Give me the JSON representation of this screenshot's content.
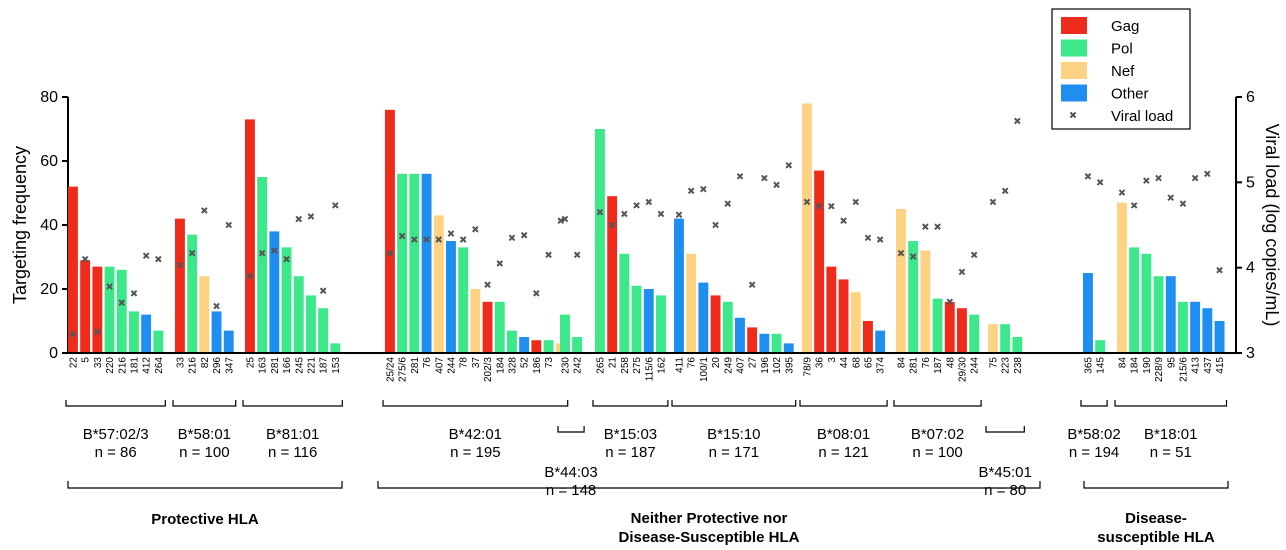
{
  "chart_data": {
    "type": "bar",
    "ylabel_left": "Targeting frequency",
    "ylabel_right": "Viral load (log copies/mL)",
    "ylim_left": [
      0,
      80
    ],
    "ylim_right": [
      3,
      6
    ],
    "yticks_left": [
      "0",
      "20",
      "40",
      "60",
      "80"
    ],
    "yticks_right": [
      "3",
      "4",
      "5",
      "6"
    ],
    "colors": {
      "Gag": "#ef2b1c",
      "Pol": "#3de88a",
      "Nef": "#fdd383",
      "Other": "#1e8ef0",
      "Viral load": "#555555"
    },
    "legend": {
      "position": "top-right",
      "entries": [
        "Gag",
        "Pol",
        "Nef",
        "Other",
        "Viral load"
      ]
    },
    "hla_alleles": [
      {
        "name": "B*57:02/3",
        "n": "n = 86",
        "bars": [
          {
            "label": "22",
            "protein": "Gag",
            "freq": 52,
            "vl": 3.22
          },
          {
            "label": "5",
            "protein": "Gag",
            "freq": 29,
            "vl": 4.1
          },
          {
            "label": "33",
            "protein": "Gag",
            "freq": 27,
            "vl": 3.25
          },
          {
            "label": "220",
            "protein": "Pol",
            "freq": 27,
            "vl": 3.78
          },
          {
            "label": "216",
            "protein": "Pol",
            "freq": 26,
            "vl": 3.59
          },
          {
            "label": "181",
            "protein": "Pol",
            "freq": 13,
            "vl": 3.7
          },
          {
            "label": "412",
            "protein": "Other",
            "freq": 12,
            "vl": 4.14
          },
          {
            "label": "264",
            "protein": "Pol",
            "freq": 7,
            "vl": 4.1
          }
        ]
      },
      {
        "name": "B*58:01",
        "n": "n = 100",
        "bars": [
          {
            "label": "33",
            "protein": "Gag",
            "freq": 42,
            "vl": 4.03
          },
          {
            "label": "216",
            "protein": "Pol",
            "freq": 37,
            "vl": 4.17
          },
          {
            "label": "82",
            "protein": "Nef",
            "freq": 24,
            "vl": 4.67
          },
          {
            "label": "296",
            "protein": "Other",
            "freq": 13,
            "vl": 3.55
          },
          {
            "label": "347",
            "protein": "Other",
            "freq": 7,
            "vl": 4.5
          }
        ]
      },
      {
        "name": "B*81:01",
        "n": "n = 116",
        "bars": [
          {
            "label": "25",
            "protein": "Gag",
            "freq": 73,
            "vl": 3.9
          },
          {
            "label": "163",
            "protein": "Pol",
            "freq": 55,
            "vl": 4.17
          },
          {
            "label": "281",
            "protein": "Other",
            "freq": 38,
            "vl": 4.2
          },
          {
            "label": "166",
            "protein": "Pol",
            "freq": 33,
            "vl": 4.1
          },
          {
            "label": "245",
            "protein": "Pol",
            "freq": 24,
            "vl": 4.57
          },
          {
            "label": "221",
            "protein": "Pol",
            "freq": 18,
            "vl": 4.6
          },
          {
            "label": "187",
            "protein": "Pol",
            "freq": 14,
            "vl": 3.73
          },
          {
            "label": "153",
            "protein": "Pol",
            "freq": 3,
            "vl": 4.73
          }
        ]
      },
      {
        "name": "B*42:01",
        "n": "n = 195",
        "bars": [
          {
            "label": "25/24",
            "protein": "Gag",
            "freq": 76,
            "vl": 4.17
          },
          {
            "label": "275/6",
            "protein": "Pol",
            "freq": 56,
            "vl": 4.37
          },
          {
            "label": "281",
            "protein": "Pol",
            "freq": 56,
            "vl": 4.33
          },
          {
            "label": "76",
            "protein": "Other",
            "freq": 56,
            "vl": 4.33
          },
          {
            "label": "407",
            "protein": "Nef",
            "freq": 43,
            "vl": 4.33
          },
          {
            "label": "244",
            "protein": "Other",
            "freq": 35,
            "vl": 4.4
          },
          {
            "label": "78",
            "protein": "Pol",
            "freq": 33,
            "vl": 4.33
          },
          {
            "label": "37",
            "protein": "Nef",
            "freq": 20,
            "vl": 4.45
          },
          {
            "label": "202/3",
            "protein": "Gag",
            "freq": 16,
            "vl": 3.8
          },
          {
            "label": "184",
            "protein": "Pol",
            "freq": 16,
            "vl": 4.05
          },
          {
            "label": "328",
            "protein": "Pol",
            "freq": 7,
            "vl": 4.35
          },
          {
            "label": "52",
            "protein": "Other",
            "freq": 5,
            "vl": 4.38
          },
          {
            "label": "186",
            "protein": "Gag",
            "freq": 4,
            "vl": 3.7
          },
          {
            "label": "73",
            "protein": "Pol",
            "freq": 4,
            "vl": 4.15
          },
          {
            "label": "",
            "protein": "Nef",
            "freq": 3,
            "vl": 4.55
          }
        ]
      },
      {
        "name": "B*44:03",
        "n": "n = 148",
        "bars": [
          {
            "label": "230",
            "protein": "Pol",
            "freq": 12,
            "vl": 4.57
          },
          {
            "label": "242",
            "protein": "Pol",
            "freq": 5,
            "vl": 4.15
          }
        ]
      },
      {
        "name": "B*15:03",
        "n": "n = 187",
        "bars": [
          {
            "label": "265",
            "protein": "Pol",
            "freq": 70,
            "vl": 4.65
          },
          {
            "label": "21",
            "protein": "Gag",
            "freq": 49,
            "vl": 4.5
          },
          {
            "label": "258",
            "protein": "Pol",
            "freq": 31,
            "vl": 4.63
          },
          {
            "label": "275",
            "protein": "Pol",
            "freq": 21,
            "vl": 4.73
          },
          {
            "label": "115/6",
            "protein": "Other",
            "freq": 20,
            "vl": 4.77
          },
          {
            "label": "162",
            "protein": "Pol",
            "freq": 18,
            "vl": 4.63
          }
        ]
      },
      {
        "name": "B*15:10",
        "n": "n = 171",
        "bars": [
          {
            "label": "411",
            "protein": "Other",
            "freq": 42,
            "vl": 4.62
          },
          {
            "label": "76",
            "protein": "Nef",
            "freq": 31,
            "vl": 4.9
          },
          {
            "label": "100/1",
            "protein": "Other",
            "freq": 22,
            "vl": 4.92
          },
          {
            "label": "20",
            "protein": "Gag",
            "freq": 18,
            "vl": 4.5
          },
          {
            "label": "249",
            "protein": "Pol",
            "freq": 16,
            "vl": 4.75
          },
          {
            "label": "407",
            "protein": "Other",
            "freq": 11,
            "vl": 5.07
          },
          {
            "label": "27",
            "protein": "Gag",
            "freq": 8,
            "vl": 3.8
          },
          {
            "label": "196",
            "protein": "Other",
            "freq": 6,
            "vl": 5.05
          },
          {
            "label": "102",
            "protein": "Pol",
            "freq": 6,
            "vl": 4.97
          },
          {
            "label": "395",
            "protein": "Other",
            "freq": 3,
            "vl": 5.2
          }
        ]
      },
      {
        "name": "B*08:01",
        "n": "n = 121",
        "bars": [
          {
            "label": "78/9",
            "protein": "Nef",
            "freq": 78,
            "vl": 4.77
          },
          {
            "label": "36",
            "protein": "Gag",
            "freq": 57,
            "vl": 4.72
          },
          {
            "label": "3",
            "protein": "Gag",
            "freq": 27,
            "vl": 4.72
          },
          {
            "label": "44",
            "protein": "Gag",
            "freq": 23,
            "vl": 4.55
          },
          {
            "label": "68",
            "protein": "Nef",
            "freq": 19,
            "vl": 4.77
          },
          {
            "label": "65",
            "protein": "Gag",
            "freq": 10,
            "vl": 4.35
          },
          {
            "label": "374",
            "protein": "Other",
            "freq": 7,
            "vl": 4.33
          }
        ]
      },
      {
        "name": "B*07:02",
        "n": "n = 100",
        "bars": [
          {
            "label": "84",
            "protein": "Nef",
            "freq": 45,
            "vl": 4.17
          },
          {
            "label": "281",
            "protein": "Pol",
            "freq": 35,
            "vl": 4.13
          },
          {
            "label": "76",
            "protein": "Nef",
            "freq": 32,
            "vl": 4.48
          },
          {
            "label": "187",
            "protein": "Pol",
            "freq": 17,
            "vl": 4.48
          },
          {
            "label": "48",
            "protein": "Gag",
            "freq": 16,
            "vl": 3.6
          },
          {
            "label": "29/30",
            "protein": "Gag",
            "freq": 14,
            "vl": 3.95
          },
          {
            "label": "244",
            "protein": "Pol",
            "freq": 12,
            "vl": 4.15
          }
        ]
      },
      {
        "name": "B*45:01",
        "n": "n = 80",
        "bars": [
          {
            "label": "75",
            "protein": "Nef",
            "freq": 9,
            "vl": 4.77
          },
          {
            "label": "223",
            "protein": "Pol",
            "freq": 9,
            "vl": 4.9
          },
          {
            "label": "238",
            "protein": "Pol",
            "freq": 5,
            "vl": 5.72
          }
        ]
      },
      {
        "name": "B*58:02",
        "n": "n = 194",
        "bars": [
          {
            "label": "365",
            "protein": "Other",
            "freq": 25,
            "vl": 5.07
          },
          {
            "label": "145",
            "protein": "Pol",
            "freq": 4,
            "vl": 5.0
          }
        ]
      },
      {
        "name": "B*18:01",
        "n": "n = 51",
        "bars": [
          {
            "label": "84",
            "protein": "Nef",
            "freq": 47,
            "vl": 4.88
          },
          {
            "label": "184",
            "protein": "Pol",
            "freq": 33,
            "vl": 4.73
          },
          {
            "label": "190",
            "protein": "Pol",
            "freq": 31,
            "vl": 5.02
          },
          {
            "label": "228/9",
            "protein": "Pol",
            "freq": 24,
            "vl": 5.05
          },
          {
            "label": "95",
            "protein": "Other",
            "freq": 24,
            "vl": 4.82
          },
          {
            "label": "215/6",
            "protein": "Pol",
            "freq": 16,
            "vl": 4.75
          },
          {
            "label": "413",
            "protein": "Other",
            "freq": 16,
            "vl": 5.05
          },
          {
            "label": "437",
            "protein": "Other",
            "freq": 14,
            "vl": 5.1
          },
          {
            "label": "415",
            "protein": "Other",
            "freq": 10,
            "vl": 3.97
          }
        ]
      }
    ],
    "groups": [
      {
        "name": "Protective HLA"
      },
      {
        "name": "Neither Protective nor\nDisease-Susceptible HLA"
      },
      {
        "name": "Disease-\nsusceptible HLA"
      }
    ]
  }
}
